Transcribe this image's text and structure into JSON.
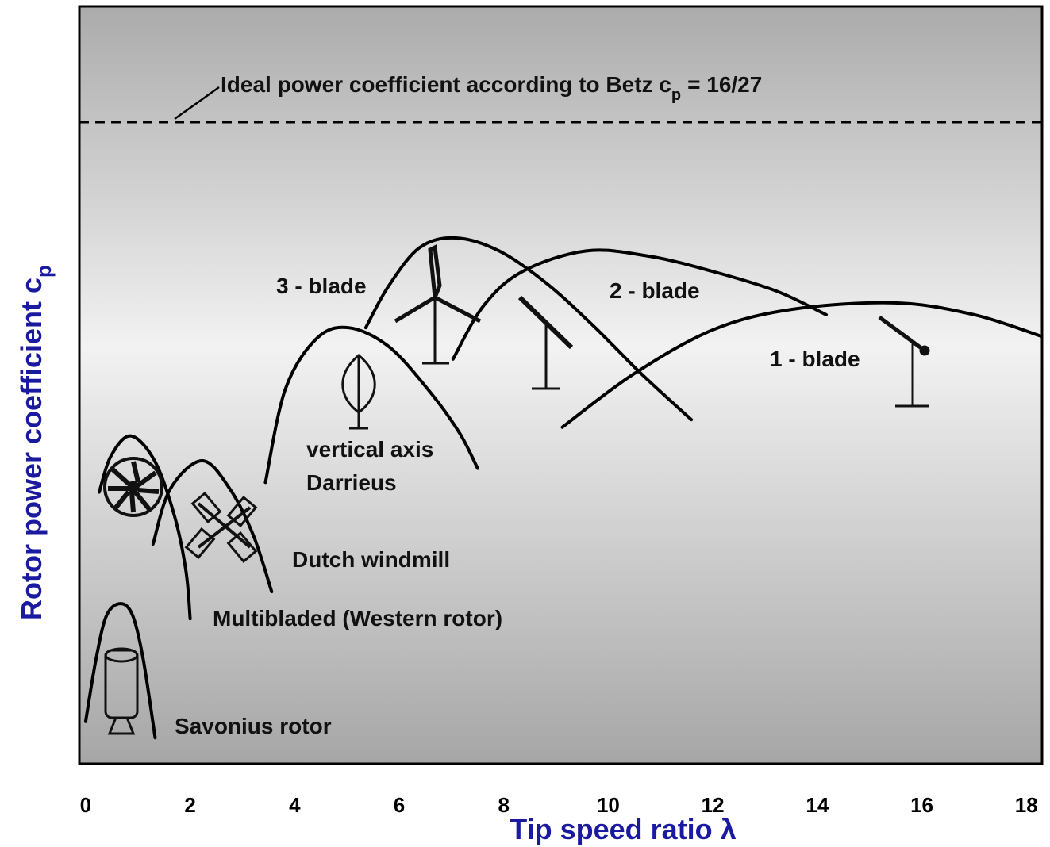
{
  "chart_data": {
    "type": "line",
    "x_label": "Tip speed ratio  λ",
    "y_label": {
      "text": "Rotor power coefficient c",
      "sub": "p"
    },
    "xlim": [
      -0.12,
      18.3
    ],
    "ylim": [
      0,
      0.7
    ],
    "xticks": [
      0,
      2,
      4,
      6,
      8,
      10,
      12,
      14,
      16,
      18
    ],
    "reference_line": {
      "value": 0.593,
      "text": "Ideal power coefficient according to Betz c",
      "sub": "p",
      "tail": "= 16/27"
    },
    "series": [
      {
        "name": "Savonius rotor",
        "color": "#000000",
        "x": [
          0,
          0.2,
          0.4,
          0.67,
          0.9,
          1.1,
          1.33
        ],
        "values": [
          0.039,
          0.097,
          0.137,
          0.148,
          0.137,
          0.097,
          0.024
        ]
      },
      {
        "name": "Multibladed (Western rotor)",
        "color": "#000000",
        "x": [
          0.26,
          0.48,
          0.86,
          1.32,
          1.7,
          1.92,
          2.0
        ],
        "values": [
          0.251,
          0.284,
          0.303,
          0.28,
          0.229,
          0.178,
          0.134
        ]
      },
      {
        "name": "Dutch windmill",
        "color": "#000000",
        "x": [
          1.29,
          1.62,
          2.23,
          2.76,
          3.21,
          3.56
        ],
        "values": [
          0.203,
          0.254,
          0.28,
          0.254,
          0.211,
          0.159
        ]
      },
      {
        "name": "vertical axis Darrieus",
        "color": "#000000",
        "x": [
          3.44,
          3.82,
          4.42,
          5.03,
          5.79,
          6.55,
          7.15,
          7.5
        ],
        "values": [
          0.26,
          0.346,
          0.393,
          0.403,
          0.386,
          0.346,
          0.306,
          0.273
        ]
      },
      {
        "name": "3 - blade",
        "color": "#000000",
        "x": [
          5.36,
          5.79,
          6.39,
          7.08,
          7.91,
          8.82,
          9.73,
          10.64,
          11.59
        ],
        "values": [
          0.403,
          0.441,
          0.477,
          0.486,
          0.474,
          0.444,
          0.404,
          0.36,
          0.318
        ]
      },
      {
        "name": "2 - blade",
        "color": "#000000",
        "x": [
          7.03,
          7.61,
          8.36,
          9.58,
          10.79,
          12.0,
          13.21,
          14.17
        ],
        "values": [
          0.374,
          0.423,
          0.455,
          0.474,
          0.469,
          0.455,
          0.437,
          0.415
        ]
      },
      {
        "name": "1 - blade",
        "color": "#000000",
        "x": [
          9.12,
          10.48,
          12.0,
          13.52,
          15.48,
          17.0,
          18.29
        ],
        "values": [
          0.311,
          0.36,
          0.401,
          0.42,
          0.426,
          0.415,
          0.395
        ]
      }
    ]
  }
}
